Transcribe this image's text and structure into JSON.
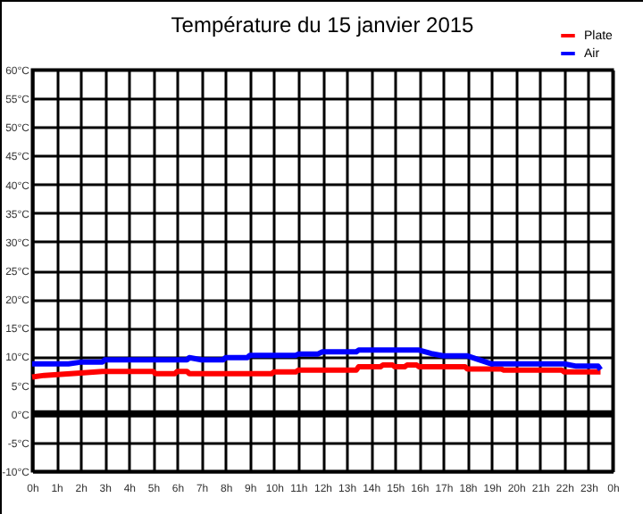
{
  "chart_data": {
    "type": "line",
    "title": "Température du 15 janvier 2015",
    "legend": "top right",
    "grid": true,
    "xlim": [
      "2015-01-15T00:00",
      "2015-01-16T00:00"
    ],
    "xticks": [
      {
        "value": "2015-01-15T00:00",
        "label": "0h"
      },
      {
        "value": "2015-01-15T01:00",
        "label": "1h"
      },
      {
        "value": "2015-01-15T02:00",
        "label": "2h"
      },
      {
        "value": "2015-01-15T03:00",
        "label": "3h"
      },
      {
        "value": "2015-01-15T04:00",
        "label": "4h"
      },
      {
        "value": "2015-01-15T05:00",
        "label": "5h"
      },
      {
        "value": "2015-01-15T06:00",
        "label": "6h"
      },
      {
        "value": "2015-01-15T07:00",
        "label": "7h"
      },
      {
        "value": "2015-01-15T08:00",
        "label": "8h"
      },
      {
        "value": "2015-01-15T09:00",
        "label": "9h"
      },
      {
        "value": "2015-01-15T10:00",
        "label": "10h"
      },
      {
        "value": "2015-01-15T11:00",
        "label": "11h"
      },
      {
        "value": "2015-01-15T12:00",
        "label": "12h"
      },
      {
        "value": "2015-01-15T13:00",
        "label": "13h"
      },
      {
        "value": "2015-01-15T14:00",
        "label": "14h"
      },
      {
        "value": "2015-01-15T15:00",
        "label": "15h"
      },
      {
        "value": "2015-01-15T16:00",
        "label": "16h"
      },
      {
        "value": "2015-01-15T17:00",
        "label": "17h"
      },
      {
        "value": "2015-01-15T18:00",
        "label": "18h"
      },
      {
        "value": "2015-01-15T19:00",
        "label": "19h"
      },
      {
        "value": "2015-01-15T20:00",
        "label": "20h"
      },
      {
        "value": "2015-01-15T21:00",
        "label": "21h"
      },
      {
        "value": "2015-01-15T22:00",
        "label": "22h"
      },
      {
        "value": "2015-01-15T23:00",
        "label": "23h"
      },
      {
        "value": "2015-01-16T00:00",
        "label": "0h"
      }
    ],
    "ylim": [
      -10,
      60
    ],
    "yticks": [
      {
        "value": -10,
        "label": "-10°C"
      },
      {
        "value": -5,
        "label": "-5°C"
      },
      {
        "value": 0,
        "label": "0°C"
      },
      {
        "value": 5,
        "label": "5°C"
      },
      {
        "value": 10,
        "label": "10°C"
      },
      {
        "value": 15,
        "label": "15°C"
      },
      {
        "value": 20,
        "label": "20°C"
      },
      {
        "value": 25,
        "label": "25°C"
      },
      {
        "value": 30,
        "label": "30°C"
      },
      {
        "value": 35,
        "label": "35°C"
      },
      {
        "value": 40,
        "label": "40°C"
      },
      {
        "value": 45,
        "label": "45°C"
      },
      {
        "value": 50,
        "label": "50°C"
      },
      {
        "value": 55,
        "label": "55°C"
      },
      {
        "value": 60,
        "label": "60°C"
      }
    ],
    "ref_lines": [
      {
        "axis": "y",
        "value": 0,
        "color": "#000000"
      }
    ],
    "series": [
      {
        "name": "Plate",
        "color": "#ff0000",
        "x": [
          "2015-01-15T00:00",
          "2015-01-15T00:30",
          "2015-01-15T02:00",
          "2015-01-15T02:54",
          "2015-01-15T05:00",
          "2015-01-15T05:06",
          "2015-01-15T05:54",
          "2015-01-15T06:00",
          "2015-01-15T06:24",
          "2015-01-15T06:30",
          "2015-01-15T09:54",
          "2015-01-15T10:00",
          "2015-01-15T10:54",
          "2015-01-15T11:00",
          "2015-01-15T13:24",
          "2015-01-15T13:30",
          "2015-01-15T14:24",
          "2015-01-15T14:30",
          "2015-01-15T14:54",
          "2015-01-15T15:00",
          "2015-01-15T15:24",
          "2015-01-15T15:30",
          "2015-01-15T15:54",
          "2015-01-15T16:00",
          "2015-01-15T17:54",
          "2015-01-15T18:00",
          "2015-01-15T19:24",
          "2015-01-15T19:30",
          "2015-01-15T21:54",
          "2015-01-15T22:00",
          "2015-01-15T23:30"
        ],
        "values": [
          6.4,
          6.7,
          7.1,
          7.4,
          7.4,
          7.0,
          7.0,
          7.4,
          7.4,
          7.0,
          7.0,
          7.3,
          7.3,
          7.6,
          7.6,
          8.2,
          8.2,
          8.5,
          8.5,
          8.2,
          8.2,
          8.5,
          8.5,
          8.2,
          8.2,
          7.8,
          7.8,
          7.6,
          7.6,
          7.3,
          7.3
        ]
      },
      {
        "name": "Air",
        "color": "#0000ff",
        "x": [
          "2015-01-15T00:00",
          "2015-01-15T01:30",
          "2015-01-15T02:00",
          "2015-01-15T02:54",
          "2015-01-15T03:00",
          "2015-01-15T06:24",
          "2015-01-15T06:30",
          "2015-01-15T07:00",
          "2015-01-15T07:54",
          "2015-01-15T08:00",
          "2015-01-15T08:54",
          "2015-01-15T09:00",
          "2015-01-15T10:54",
          "2015-01-15T11:00",
          "2015-01-15T11:48",
          "2015-01-15T12:00",
          "2015-01-15T13:24",
          "2015-01-15T13:30",
          "2015-01-15T16:00",
          "2015-01-15T16:30",
          "2015-01-15T17:00",
          "2015-01-15T18:00",
          "2015-01-15T18:30",
          "2015-01-15T19:00",
          "2015-01-15T22:00",
          "2015-01-15T22:30",
          "2015-01-15T23:24",
          "2015-01-15T23:30"
        ],
        "values": [
          8.7,
          8.7,
          9.0,
          9.0,
          9.4,
          9.4,
          9.8,
          9.4,
          9.4,
          9.8,
          9.8,
          10.2,
          10.2,
          10.4,
          10.4,
          10.8,
          10.8,
          11.1,
          11.1,
          10.5,
          10.1,
          10.1,
          9.4,
          8.7,
          8.7,
          8.3,
          8.3,
          7.7
        ]
      }
    ]
  }
}
